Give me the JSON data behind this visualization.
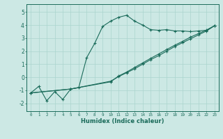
{
  "xlabel": "Humidex (Indice chaleur)",
  "bg_color": "#cce8e4",
  "grid_color": "#aad4ce",
  "line_color": "#1a6b5a",
  "xlim": [
    -0.5,
    23.5
  ],
  "ylim": [
    -2.6,
    5.6
  ],
  "xticks": [
    0,
    1,
    2,
    3,
    4,
    5,
    6,
    7,
    8,
    9,
    10,
    11,
    12,
    13,
    14,
    15,
    16,
    17,
    18,
    19,
    20,
    21,
    22,
    23
  ],
  "yticks": [
    -2,
    -1,
    0,
    1,
    2,
    3,
    4,
    5
  ],
  "line1_x": [
    0,
    1,
    2,
    3,
    4,
    5,
    6,
    7,
    8,
    9,
    10,
    11,
    12,
    13,
    14,
    15,
    16,
    17,
    18,
    19,
    20,
    21,
    22,
    23
  ],
  "line1_y": [
    -1.2,
    -0.7,
    -1.8,
    -1.1,
    -1.7,
    -0.9,
    -0.8,
    1.5,
    2.6,
    3.9,
    4.3,
    4.6,
    4.75,
    4.3,
    4.0,
    3.65,
    3.6,
    3.65,
    3.55,
    3.55,
    3.5,
    3.55,
    3.6,
    3.95
  ],
  "line2_x": [
    0,
    5,
    10,
    11,
    12,
    13,
    14,
    15,
    16,
    17,
    18,
    19,
    20,
    21,
    22,
    23
  ],
  "line2_y": [
    -1.2,
    -0.9,
    -0.3,
    0.05,
    0.35,
    0.65,
    1.0,
    1.35,
    1.65,
    2.0,
    2.35,
    2.65,
    2.95,
    3.25,
    3.55,
    3.95
  ],
  "line3_x": [
    0,
    5,
    10,
    11,
    12,
    13,
    14,
    15,
    16,
    17,
    18,
    19,
    20,
    21,
    22,
    23
  ],
  "line3_y": [
    -1.2,
    -0.9,
    -0.35,
    0.1,
    0.4,
    0.75,
    1.1,
    1.45,
    1.78,
    2.12,
    2.45,
    2.75,
    3.08,
    3.35,
    3.62,
    3.95
  ]
}
